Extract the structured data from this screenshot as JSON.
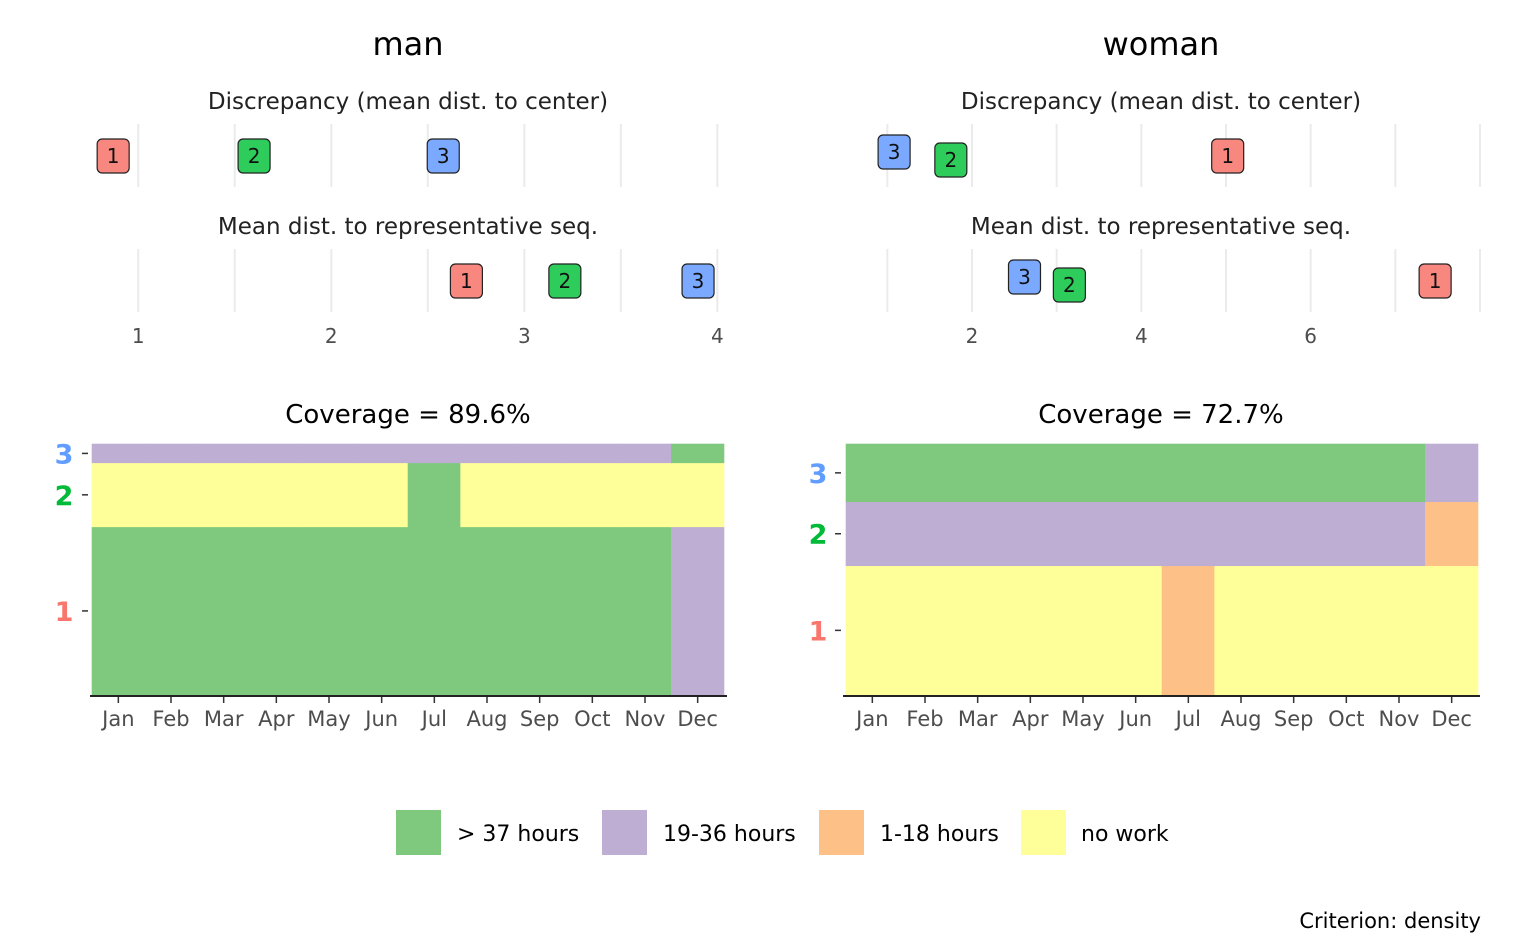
{
  "chart_data": [
    {
      "type": "scatter",
      "panel": "man",
      "title": "man",
      "xlim": [
        0.75,
        4.05
      ],
      "xticks": [
        1,
        2,
        3,
        4
      ],
      "rows": [
        {
          "subtitle": "Discrepancy (mean dist. to center)",
          "points": [
            {
              "label": "1",
              "x": 0.87
            },
            {
              "label": "2",
              "x": 1.6
            },
            {
              "label": "3",
              "x": 2.58
            }
          ]
        },
        {
          "subtitle": "Mean dist. to representative seq.",
          "points": [
            {
              "label": "1",
              "x": 2.7
            },
            {
              "label": "2",
              "x": 3.21
            },
            {
              "label": "3",
              "x": 3.9
            }
          ]
        }
      ]
    },
    {
      "type": "scatter",
      "panel": "woman",
      "title": "woman",
      "xlim": [
        0.5,
        8.0
      ],
      "xticks": [
        2,
        4,
        6
      ],
      "rows": [
        {
          "subtitle": "Discrepancy (mean dist. to center)",
          "points": [
            {
              "label": "3",
              "x": 1.08
            },
            {
              "label": "2",
              "x": 1.75
            },
            {
              "label": "1",
              "x": 5.02
            }
          ]
        },
        {
          "subtitle": "Mean dist. to representative seq.",
          "points": [
            {
              "label": "3",
              "x": 2.62
            },
            {
              "label": "2",
              "x": 3.15
            },
            {
              "label": "1",
              "x": 7.47
            }
          ]
        }
      ]
    },
    {
      "type": "heatmap",
      "panel": "man",
      "title": "Coverage = 89.6%",
      "categories": [
        "Jan",
        "Feb",
        "Mar",
        "Apr",
        "May",
        "Jun",
        "Jul",
        "Aug",
        "Sep",
        "Oct",
        "Nov",
        "Dec"
      ],
      "groups": [
        {
          "label": "1",
          "share": 0.67,
          "states": [
            "> 37 hours",
            "> 37 hours",
            "> 37 hours",
            "> 37 hours",
            "> 37 hours",
            "> 37 hours",
            "> 37 hours",
            "> 37 hours",
            "> 37 hours",
            "> 37 hours",
            "> 37 hours",
            "19-36 hours"
          ]
        },
        {
          "label": "2",
          "share": 0.255,
          "states": [
            "no work",
            "no work",
            "no work",
            "no work",
            "no work",
            "no work",
            "> 37 hours",
            "no work",
            "no work",
            "no work",
            "no work",
            "no work"
          ]
        },
        {
          "label": "3",
          "share": 0.075,
          "states": [
            "19-36 hours",
            "19-36 hours",
            "19-36 hours",
            "19-36 hours",
            "19-36 hours",
            "19-36 hours",
            "19-36 hours",
            "19-36 hours",
            "19-36 hours",
            "19-36 hours",
            "19-36 hours",
            "> 37 hours"
          ]
        }
      ]
    },
    {
      "type": "heatmap",
      "panel": "woman",
      "title": "Coverage = 72.7%",
      "categories": [
        "Jan",
        "Feb",
        "Mar",
        "Apr",
        "May",
        "Jun",
        "Jul",
        "Aug",
        "Sep",
        "Oct",
        "Nov",
        "Dec"
      ],
      "groups": [
        {
          "label": "1",
          "share": 0.515,
          "states": [
            "no work",
            "no work",
            "no work",
            "no work",
            "no work",
            "no work",
            "1-18 hours",
            "no work",
            "no work",
            "no work",
            "no work",
            "no work"
          ]
        },
        {
          "label": "2",
          "share": 0.255,
          "states": [
            "19-36 hours",
            "19-36 hours",
            "19-36 hours",
            "19-36 hours",
            "19-36 hours",
            "19-36 hours",
            "19-36 hours",
            "19-36 hours",
            "19-36 hours",
            "19-36 hours",
            "19-36 hours",
            "1-18 hours"
          ]
        },
        {
          "label": "3",
          "share": 0.23,
          "states": [
            "> 37 hours",
            "> 37 hours",
            "> 37 hours",
            "> 37 hours",
            "> 37 hours",
            "> 37 hours",
            "> 37 hours",
            "> 37 hours",
            "> 37 hours",
            "> 37 hours",
            "> 37 hours",
            "19-36 hours"
          ]
        }
      ]
    }
  ],
  "legend": [
    {
      "label": "> 37 hours",
      "color": "#7FC97F"
    },
    {
      "label": "19-36 hours",
      "color": "#BEAED4"
    },
    {
      "label": "1-18 hours",
      "color": "#FDC086"
    },
    {
      "label": "no work",
      "color": "#FFFF99"
    }
  ],
  "group_colors": {
    "1": "#F8766D",
    "2": "#00BA38",
    "3": "#619CFF"
  },
  "point_fill_colors": {
    "1": "#F8877F",
    "2": "#2ECC5B",
    "3": "#7AA9FF"
  },
  "caption": "Criterion: density"
}
